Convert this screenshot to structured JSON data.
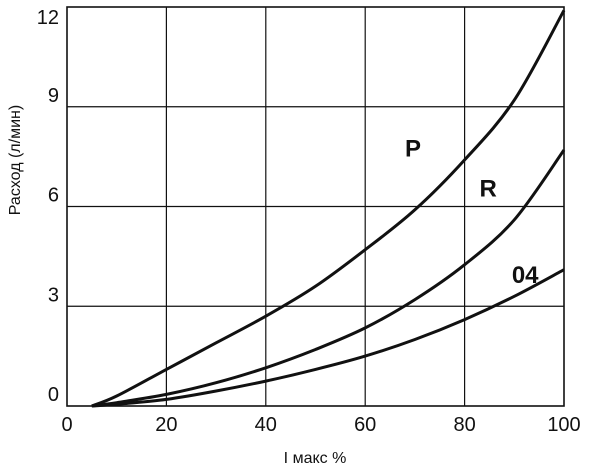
{
  "chart_data": {
    "type": "line",
    "xlabel": "I макс %",
    "ylabel": "Расход (л/мин)",
    "xlim": [
      0,
      100
    ],
    "ylim": [
      0,
      12
    ],
    "x_ticks": [
      "0",
      "20",
      "40",
      "60",
      "80",
      "100"
    ],
    "y_ticks": [
      "0",
      "3",
      "6",
      "9",
      "12"
    ],
    "grid": true,
    "series": [
      {
        "name": "P",
        "x": [
          5,
          10,
          20,
          30,
          40,
          50,
          60,
          70,
          80,
          90,
          100
        ],
        "y": [
          0,
          0.3,
          1.1,
          1.9,
          2.7,
          3.6,
          4.7,
          5.9,
          7.4,
          9.2,
          11.9
        ]
      },
      {
        "name": "R",
        "x": [
          5,
          10,
          20,
          30,
          40,
          50,
          60,
          70,
          80,
          90,
          100
        ],
        "y": [
          0,
          0.1,
          0.35,
          0.7,
          1.15,
          1.7,
          2.35,
          3.2,
          4.25,
          5.6,
          7.7
        ]
      },
      {
        "name": "04",
        "x": [
          5,
          10,
          20,
          30,
          40,
          50,
          60,
          70,
          80,
          90,
          100
        ],
        "y": [
          0,
          0.05,
          0.2,
          0.45,
          0.75,
          1.1,
          1.5,
          2.0,
          2.6,
          3.3,
          4.1
        ]
      }
    ],
    "labels": [
      {
        "text": "P",
        "x": 68,
        "y": 7.5
      },
      {
        "text": "R",
        "x": 83,
        "y": 6.3
      },
      {
        "text": "04",
        "x": 89.5,
        "y": 3.7
      }
    ]
  }
}
